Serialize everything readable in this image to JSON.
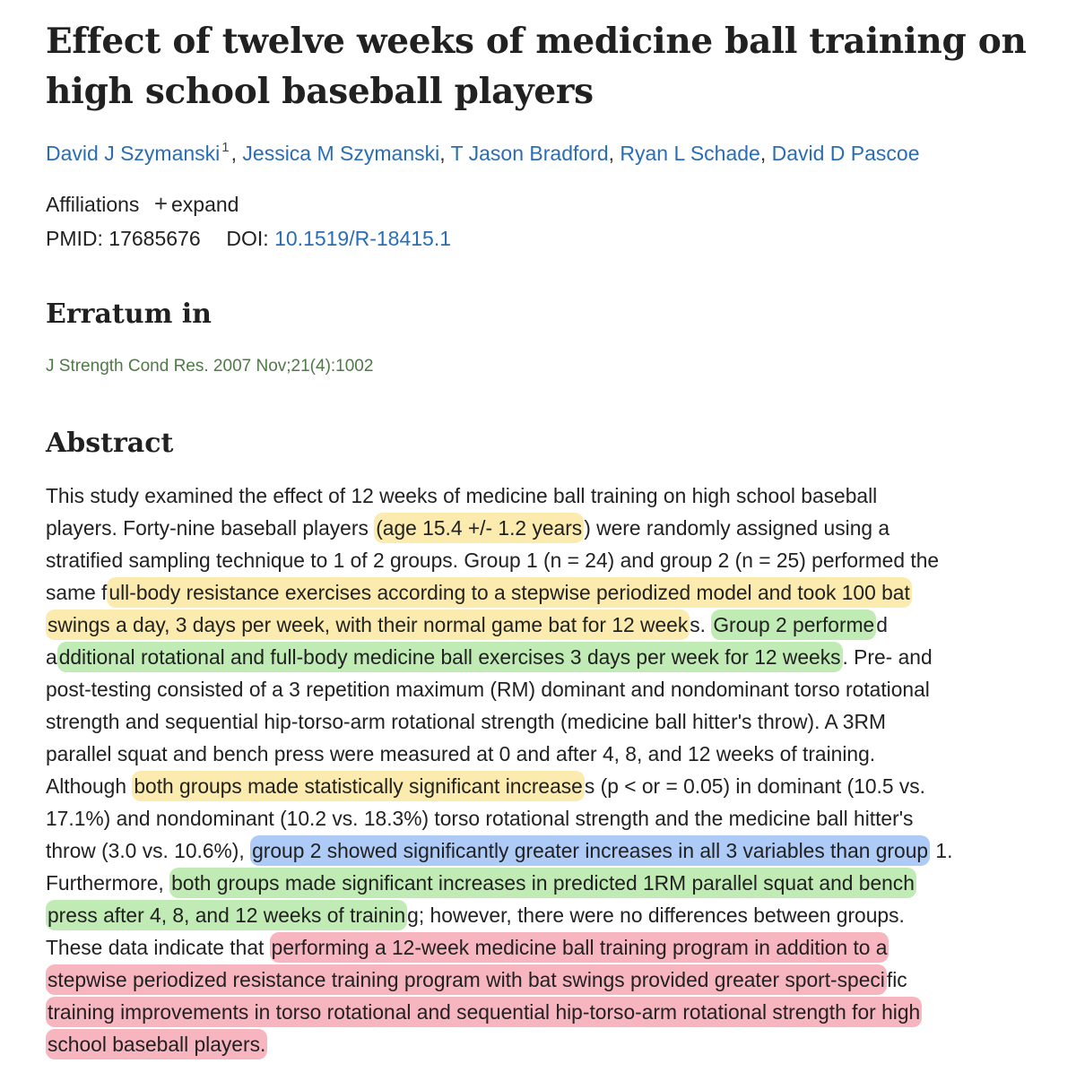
{
  "article": {
    "title_line1": "Effect of twelve weeks of medicine ball training on",
    "title_line2": "high school baseball players"
  },
  "authors": [
    "David J Szymanski",
    "Jessica M Szymanski",
    "T Jason Bradford",
    "Ryan L Schade",
    "David D Pascoe"
  ],
  "author_affiliation_marker": "1",
  "author_separator": ", ",
  "affiliations": {
    "label": "Affiliations",
    "expand_icon": "plus-icon",
    "expand_label": "expand"
  },
  "ids": {
    "pmid_label": "PMID:",
    "pmid": "17685676",
    "doi_label": "DOI:",
    "doi": "10.1519/R-18415.1"
  },
  "erratum": {
    "heading": "Erratum in",
    "citation": "J Strength Cond Res. 2007 Nov;21(4):1002"
  },
  "abstract": {
    "heading": "Abstract",
    "lines": [
      [
        {
          "t": "This study examined the effect of 12 weeks of medicine ball training on high school baseball"
        }
      ],
      [
        {
          "t": "players. Forty-nine baseball players "
        },
        {
          "t": "(age 15.4 +/- 1.2 years",
          "hl": "y"
        },
        {
          "t": ") were randomly assigned using a"
        }
      ],
      [
        {
          "t": "stratified sampling technique to 1 of 2 groups. Group 1 (n = 24) and group 2 (n = 25) performed the"
        }
      ],
      [
        {
          "t": "same f"
        },
        {
          "t": "ull-body resistance exercises according to a stepwise periodized model and took 100 bat",
          "hl": "y"
        }
      ],
      [
        {
          "t": "swings a day, 3 days per week, with their normal game bat for 12 week",
          "hl": "y"
        },
        {
          "t": "s. "
        },
        {
          "t": "Group 2 performe",
          "hl": "g"
        },
        {
          "t": "d"
        }
      ],
      [
        {
          "t": "a"
        },
        {
          "t": "dditional rotational and full-body medicine ball exercises 3 days per week for 12 weeks",
          "hl": "g"
        },
        {
          "t": ". Pre- and"
        }
      ],
      [
        {
          "t": "post-testing consisted of a 3 repetition maximum (RM) dominant and nondominant torso rotational"
        }
      ],
      [
        {
          "t": "strength and sequential hip-torso-arm rotational strength (medicine ball hitter's throw). A 3RM"
        }
      ],
      [
        {
          "t": "parallel squat and bench press were measured at 0 and after 4, 8, and 12 weeks of training."
        }
      ],
      [
        {
          "t": "Although "
        },
        {
          "t": "both groups made statistically significant increase",
          "hl": "y"
        },
        {
          "t": "s (p < or = 0.05) in dominant (10.5 vs."
        }
      ],
      [
        {
          "t": "17.1%) and nondominant (10.2 vs. 18.3%) torso rotational strength and the medicine ball hitter's"
        }
      ],
      [
        {
          "t": "throw (3.0 vs. 10.6%), "
        },
        {
          "t": "group 2 showed significantly greater increases in all 3 variables than group",
          "hl": "b"
        },
        {
          "t": " 1."
        }
      ],
      [
        {
          "t": "Furthermore, "
        },
        {
          "t": "both groups made significant increases in predicted 1RM parallel squat and bench",
          "hl": "g"
        }
      ],
      [
        {
          "t": "press after 4, 8, and 12 weeks of trainin",
          "hl": "g"
        },
        {
          "t": "g; however, there were no differences between groups."
        }
      ],
      [
        {
          "t": "These data indicate that "
        },
        {
          "t": "performing a 12-week medicine ball training program in addition to a",
          "hl": "r"
        }
      ],
      [
        {
          "t": "stepwise periodized resistance training program with bat swings provided greater sport-speci",
          "hl": "r"
        },
        {
          "t": "fic"
        }
      ],
      [
        {
          "t": "training improvements in torso rotational and sequential hip-torso-arm rotational strength for high",
          "hl": "r"
        }
      ],
      [
        {
          "t": "school baseball players.",
          "hl": "r"
        }
      ]
    ]
  },
  "colors": {
    "link": "#2a6db5",
    "citation": "#4e7a45",
    "highlight_yellow": "#fade78",
    "highlight_green": "#96de82",
    "highlight_blue": "#82aff5",
    "highlight_red": "#f0788c"
  }
}
